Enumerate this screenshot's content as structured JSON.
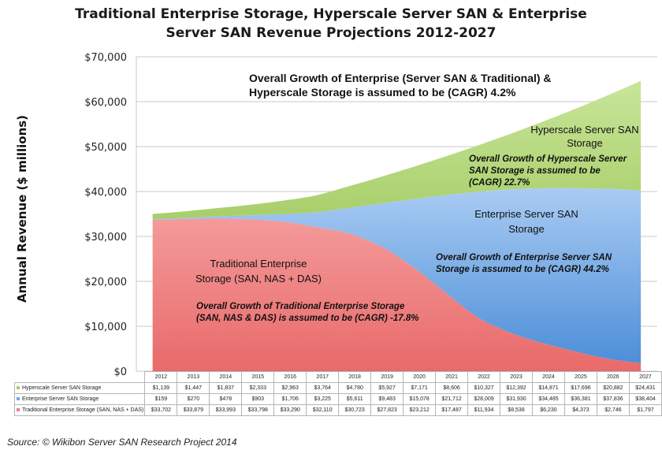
{
  "title_line1": "Traditional Enterprise Storage, Hyperscale Server SAN & Enterprise",
  "title_line2": "Server SAN Revenue Projections 2012-2027",
  "source": "Source: © Wikibon Server SAN Research Project 2014",
  "colors": {
    "hyperscale": "#a8cf6a",
    "enterprise": "#6fa8e6",
    "traditional": "#f07f7f"
  },
  "annotations": {
    "overall_1": "Overall Growth of Enterprise (Server SAN & Traditional) &",
    "overall_2": "Hyperscale Storage is assumed to be (CAGR) 4.2%",
    "hyper_name_1": "Hyperscale Server SAN",
    "hyper_name_2": "Storage",
    "hyper_growth_1": "Overall Growth of Hyperscale Server",
    "hyper_growth_2": "SAN Storage is assumed to be",
    "hyper_growth_3": "(CAGR) 22.7%",
    "ent_name_1": "Enterprise Server SAN",
    "ent_name_2": "Storage",
    "ent_growth_1": "Overall Growth of Enterprise Server SAN",
    "ent_growth_2": "Storage is assumed to be (CAGR) 44.2%",
    "trad_name_1": "Traditional Enterprise",
    "trad_name_2": "Storage (SAN, NAS + DAS)",
    "trad_growth_1": "Overall Growth of Traditional Enterprise Storage",
    "trad_growth_2": "(SAN, NAS & DAS) is assumed to be (CAGR) -17.8%"
  },
  "chart_data": {
    "type": "area",
    "stacked": true,
    "title": "Traditional Enterprise Storage, Hyperscale Server SAN & Enterprise Server SAN Revenue Projections 2012-2027",
    "xlabel": "",
    "ylabel": "Annual Revenue ($ millions)",
    "ylim": [
      0,
      70000
    ],
    "yticks": [
      0,
      10000,
      20000,
      30000,
      40000,
      50000,
      60000,
      70000
    ],
    "ytick_labels": [
      "$0",
      "$10,000",
      "$20,000",
      "$30,000",
      "$40,000",
      "$50,000",
      "$60,000",
      "$70,000"
    ],
    "grid": true,
    "legend": "data table below chart",
    "categories": [
      "2012",
      "2013",
      "2014",
      "2015",
      "2016",
      "2017",
      "2018",
      "2019",
      "2020",
      "2021",
      "2022",
      "2023",
      "2024",
      "2025",
      "2026",
      "2027"
    ],
    "series": [
      {
        "name": "Traditional Enterprise Storage (SAN, NAS + DAS)",
        "values": [
          33702,
          33879,
          33993,
          33798,
          33290,
          32110,
          30723,
          27823,
          23212,
          17487,
          11934,
          8538,
          6230,
          4373,
          2746,
          1797
        ],
        "labels": [
          "$33,702",
          "$33,879",
          "$33,993",
          "$33,798",
          "$33,290",
          "$32,110",
          "$30,723",
          "$27,823",
          "$23,212",
          "$17,487",
          "$11,934",
          "$8,538",
          "$6,230",
          "$4,373",
          "$2,746",
          "$1,797"
        ]
      },
      {
        "name": "Enterprise Server SAN Storage",
        "values": [
          159,
          270,
          478,
          903,
          1706,
          3225,
          5611,
          9483,
          15078,
          21712,
          28009,
          31930,
          34485,
          36381,
          37836,
          38404
        ],
        "labels": [
          "$159",
          "$270",
          "$478",
          "$903",
          "$1,706",
          "$3,225",
          "$5,611",
          "$9,483",
          "$15,078",
          "$21,712",
          "$28,009",
          "$31,930",
          "$34,485",
          "$36,381",
          "$37,836",
          "$38,404"
        ]
      },
      {
        "name": "Hyperscale Server SAN Storage",
        "values": [
          1139,
          1447,
          1837,
          2333,
          2963,
          3764,
          4780,
          5927,
          7171,
          8606,
          10327,
          12392,
          14871,
          17696,
          20882,
          24431
        ],
        "labels": [
          "$1,139",
          "$1,447",
          "$1,837",
          "$2,333",
          "$2,963",
          "$3,764",
          "$4,780",
          "$5,927",
          "$7,171",
          "$8,606",
          "$10,327",
          "$12,392",
          "$14,871",
          "$17,696",
          "$20,882",
          "$24,431"
        ]
      }
    ]
  }
}
